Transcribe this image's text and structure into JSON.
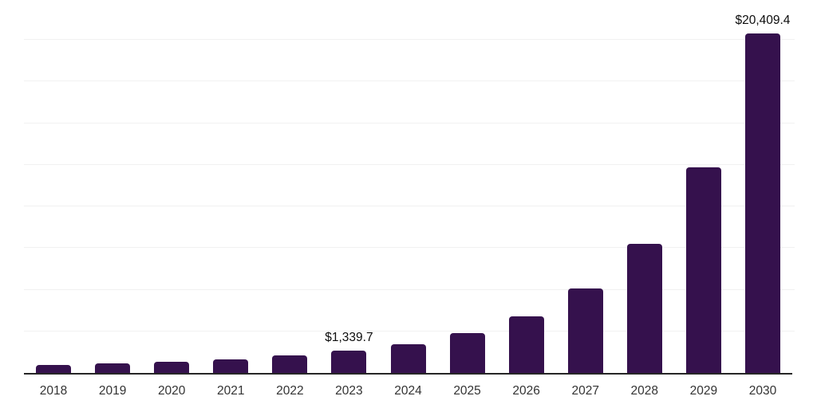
{
  "chart_data": {
    "type": "bar",
    "title": "",
    "xlabel": "",
    "ylabel": "",
    "categories": [
      "2018",
      "2019",
      "2020",
      "2021",
      "2022",
      "2023",
      "2024",
      "2025",
      "2026",
      "2027",
      "2028",
      "2029",
      "2030"
    ],
    "values": [
      495,
      590,
      655,
      815,
      1040,
      1339.7,
      1715,
      2385,
      3410,
      5070,
      7760,
      12365,
      20409.4
    ],
    "value_labels": [
      "",
      "",
      "",
      "",
      "",
      "$1,339.7",
      "",
      "",
      "",
      "",
      "",
      "",
      "$20,409.4"
    ],
    "ylim": [
      0,
      22500
    ],
    "gridline_step": 2500,
    "grid": "horizontal-only",
    "y_tick_labels_visible": false,
    "legend_position": "none",
    "colors": {
      "bar": "#35114D",
      "axis_line": "#262626",
      "gridline": "#f1f1f1",
      "tick_label": "#333333",
      "value_label": "#0d0d0d",
      "background": "#ffffff"
    }
  }
}
